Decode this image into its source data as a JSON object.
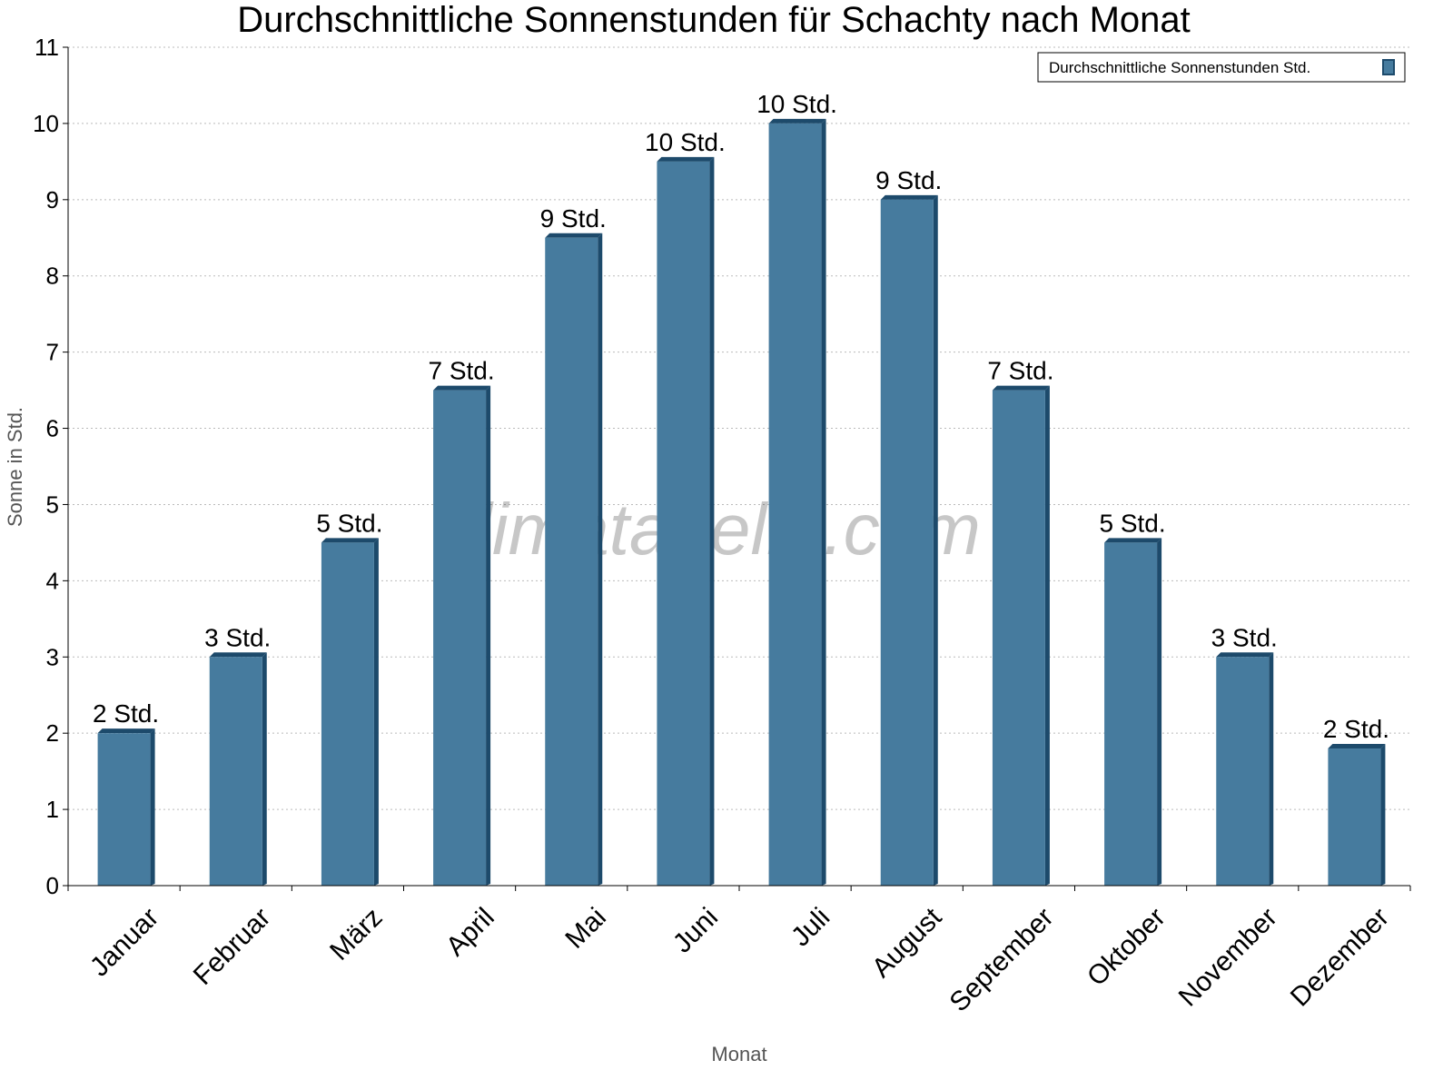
{
  "chart_data": {
    "type": "bar",
    "title": "Durchschnittliche Sonnenstunden für Schachty nach Monat",
    "xlabel": "Monat",
    "ylabel": "Sonne in Std.",
    "ylim": [
      0,
      11
    ],
    "yticks": [
      "0",
      "1",
      "2",
      "3",
      "4",
      "5",
      "6",
      "7",
      "8",
      "9",
      "10",
      "11"
    ],
    "grid": true,
    "legend_position": "top-right",
    "categories": [
      "Januar",
      "Februar",
      "März",
      "April",
      "Mai",
      "Juni",
      "Juli",
      "August",
      "September",
      "Oktober",
      "November",
      "Dezember"
    ],
    "series": [
      {
        "name": "Durchschnittliche Sonnenstunden Std.",
        "values": [
          2,
          3,
          4.5,
          6.5,
          8.5,
          9.5,
          10,
          9,
          6.5,
          4.5,
          3,
          1.8
        ],
        "labels": [
          "2 Std.",
          "3 Std.",
          "5 Std.",
          "7 Std.",
          "9 Std.",
          "10 Std.",
          "10 Std.",
          "9 Std.",
          "7 Std.",
          "5 Std.",
          "3 Std.",
          "2 Std."
        ]
      }
    ],
    "watermark": "klimatabelle.com",
    "colors": {
      "bar": "#467b9e",
      "bar_edge": "#1d4a6b"
    }
  }
}
